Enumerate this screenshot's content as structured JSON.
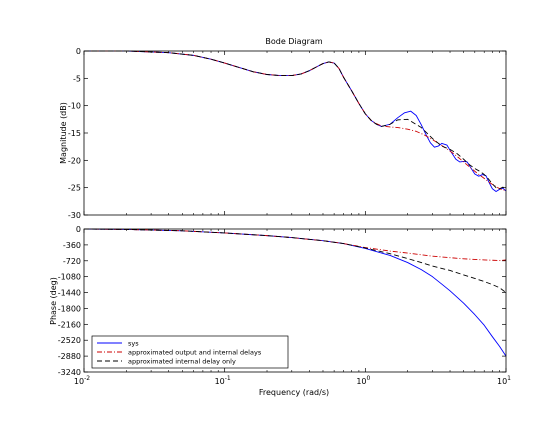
{
  "chart_data": {
    "type": "line",
    "title": "Bode Diagram",
    "xlabel": "Frequency  (rad/s)",
    "x_scale": "log",
    "xlim": [
      0.01,
      10
    ],
    "x_tick_values": [
      0.01,
      0.1,
      1,
      10
    ],
    "x_tick_labels": [
      {
        "base": "10",
        "exp": "-2"
      },
      {
        "base": "10",
        "exp": "-1"
      },
      {
        "base": "10",
        "exp": "0"
      },
      {
        "base": "10",
        "exp": "1"
      }
    ],
    "legend_position": "bottom-left",
    "panels": [
      {
        "name": "magnitude",
        "ylabel": "Magnitude (dB)",
        "ylim": [
          -30,
          0
        ],
        "yticks": [
          0,
          -5,
          -10,
          -15,
          -20,
          -25,
          -30
        ],
        "series": [
          {
            "name": "sys",
            "color": "#0000ff",
            "dash": "solid",
            "x": [
              0.01,
              0.02,
              0.04,
              0.06,
              0.08,
              0.1,
              0.13,
              0.16,
              0.2,
              0.25,
              0.3,
              0.35,
              0.4,
              0.45,
              0.5,
              0.55,
              0.6,
              0.65,
              0.7,
              0.8,
              0.9,
              1.0,
              1.1,
              1.2,
              1.3,
              1.5,
              1.7,
              1.9,
              2.1,
              2.3,
              2.5,
              2.7,
              2.9,
              3.1,
              3.3,
              3.5,
              3.8,
              4.1,
              4.4,
              4.7,
              5.0,
              5.3,
              5.6,
              6.0,
              6.4,
              6.8,
              7.2,
              7.6,
              8.0,
              8.5,
              9.0,
              9.5,
              10.0
            ],
            "y": [
              0,
              0,
              -0.3,
              -0.8,
              -1.5,
              -2.2,
              -3.1,
              -3.8,
              -4.3,
              -4.5,
              -4.5,
              -4.2,
              -3.6,
              -2.9,
              -2.3,
              -2.0,
              -2.2,
              -3.2,
              -4.8,
              -7.3,
              -9.6,
              -11.5,
              -12.7,
              -13.4,
              -13.8,
              -13.4,
              -12.2,
              -11.3,
              -11.0,
              -11.8,
              -13.5,
              -15.3,
              -16.8,
              -17.6,
              -17.4,
              -16.9,
              -17.2,
              -18.6,
              -19.8,
              -20.3,
              -20.2,
              -20.3,
              -21.3,
              -22.5,
              -22.9,
              -22.6,
              -22.8,
              -24.1,
              -25.2,
              -25.7,
              -25.3,
              -25.1,
              -25.6
            ]
          },
          {
            "name": "approximated output and internal delays",
            "color": "#cc0000",
            "dash": "dashdot",
            "x": [
              0.01,
              0.02,
              0.04,
              0.06,
              0.08,
              0.1,
              0.13,
              0.16,
              0.2,
              0.25,
              0.3,
              0.35,
              0.4,
              0.45,
              0.5,
              0.55,
              0.6,
              0.65,
              0.7,
              0.8,
              0.9,
              1.0,
              1.1,
              1.2,
              1.3,
              1.5,
              1.7,
              2.0,
              2.3,
              2.6,
              3.0,
              3.4,
              3.8,
              4.2,
              4.6,
              5.0,
              5.5,
              6.0,
              6.5,
              7.0,
              7.5,
              8.0,
              8.5,
              9.0,
              9.5,
              10.0
            ],
            "y": [
              0,
              0,
              -0.3,
              -0.8,
              -1.5,
              -2.2,
              -3.1,
              -3.8,
              -4.3,
              -4.5,
              -4.5,
              -4.2,
              -3.6,
              -2.9,
              -2.3,
              -2.0,
              -2.2,
              -3.2,
              -4.8,
              -7.3,
              -9.6,
              -11.5,
              -12.7,
              -13.3,
              -13.7,
              -13.9,
              -14.0,
              -14.3,
              -14.7,
              -15.3,
              -16.2,
              -17.1,
              -17.9,
              -18.7,
              -19.5,
              -20.3,
              -21.2,
              -22.0,
              -22.7,
              -23.3,
              -23.9,
              -24.4,
              -24.8,
              -25.2,
              -25.4,
              -25.5
            ]
          },
          {
            "name": "approximated internal delay only",
            "color": "#000000",
            "dash": "dash",
            "x": [
              0.01,
              0.02,
              0.04,
              0.06,
              0.08,
              0.1,
              0.13,
              0.16,
              0.2,
              0.25,
              0.3,
              0.35,
              0.4,
              0.45,
              0.5,
              0.55,
              0.6,
              0.65,
              0.7,
              0.8,
              0.9,
              1.0,
              1.1,
              1.2,
              1.3,
              1.5,
              1.7,
              2.0,
              2.5,
              3.0,
              3.5,
              4.0,
              4.5,
              5.0,
              5.5,
              6.0,
              6.5,
              7.0,
              7.5,
              8.0,
              8.5,
              9.0,
              9.5,
              10.0
            ],
            "y": [
              0,
              0,
              -0.3,
              -0.8,
              -1.5,
              -2.2,
              -3.1,
              -3.8,
              -4.3,
              -4.5,
              -4.5,
              -4.2,
              -3.6,
              -2.9,
              -2.3,
              -2.0,
              -2.2,
              -3.2,
              -4.8,
              -7.3,
              -9.6,
              -11.5,
              -12.7,
              -13.4,
              -13.8,
              -13.4,
              -12.6,
              -12.5,
              -14.0,
              -16.0,
              -17.4,
              -18.0,
              -18.8,
              -19.8,
              -20.8,
              -21.5,
              -22.0,
              -22.6,
              -23.4,
              -24.3,
              -25.0,
              -25.2,
              -24.9,
              -25.2
            ]
          }
        ]
      },
      {
        "name": "phase",
        "ylabel": "Phase (deg)",
        "ylim": [
          -3240,
          0
        ],
        "yticks": [
          0,
          -360,
          -720,
          -1080,
          -1440,
          -1800,
          -2160,
          -2520,
          -2880,
          -3240
        ],
        "series": [
          {
            "name": "sys",
            "color": "#0000ff",
            "dash": "solid",
            "x": [
              0.01,
              0.02,
              0.05,
              0.1,
              0.2,
              0.3,
              0.5,
              0.7,
              1.0,
              1.5,
              2.0,
              2.5,
              3.0,
              3.5,
              4.0,
              5.0,
              6.0,
              7.0,
              8.0,
              9.0,
              10.0
            ],
            "y": [
              0,
              -10,
              -40,
              -90,
              -150,
              -195,
              -265,
              -330,
              -440,
              -600,
              -760,
              -920,
              -1080,
              -1250,
              -1400,
              -1680,
              -1940,
              -2180,
              -2440,
              -2660,
              -2880
            ]
          },
          {
            "name": "approximated output and internal delays",
            "color": "#cc0000",
            "dash": "dashdot",
            "x": [
              0.01,
              0.02,
              0.05,
              0.1,
              0.2,
              0.3,
              0.5,
              0.7,
              1.0,
              1.5,
              2.0,
              2.5,
              3.0,
              4.0,
              5.0,
              6.0,
              7.0,
              8.0,
              9.0,
              10.0
            ],
            "y": [
              0,
              -10,
              -40,
              -90,
              -150,
              -195,
              -265,
              -330,
              -420,
              -500,
              -545,
              -585,
              -615,
              -650,
              -675,
              -690,
              -700,
              -708,
              -715,
              -700
            ]
          },
          {
            "name": "approximated internal delay only",
            "color": "#000000",
            "dash": "dash",
            "x": [
              0.01,
              0.02,
              0.05,
              0.1,
              0.2,
              0.3,
              0.5,
              0.7,
              1.0,
              1.5,
              2.0,
              2.5,
              3.0,
              4.0,
              5.0,
              6.0,
              7.0,
              8.0,
              9.0,
              10.0
            ],
            "y": [
              0,
              -10,
              -40,
              -90,
              -150,
              -195,
              -265,
              -330,
              -430,
              -560,
              -670,
              -760,
              -840,
              -940,
              -1040,
              -1120,
              -1190,
              -1260,
              -1330,
              -1440
            ]
          }
        ]
      }
    ]
  }
}
